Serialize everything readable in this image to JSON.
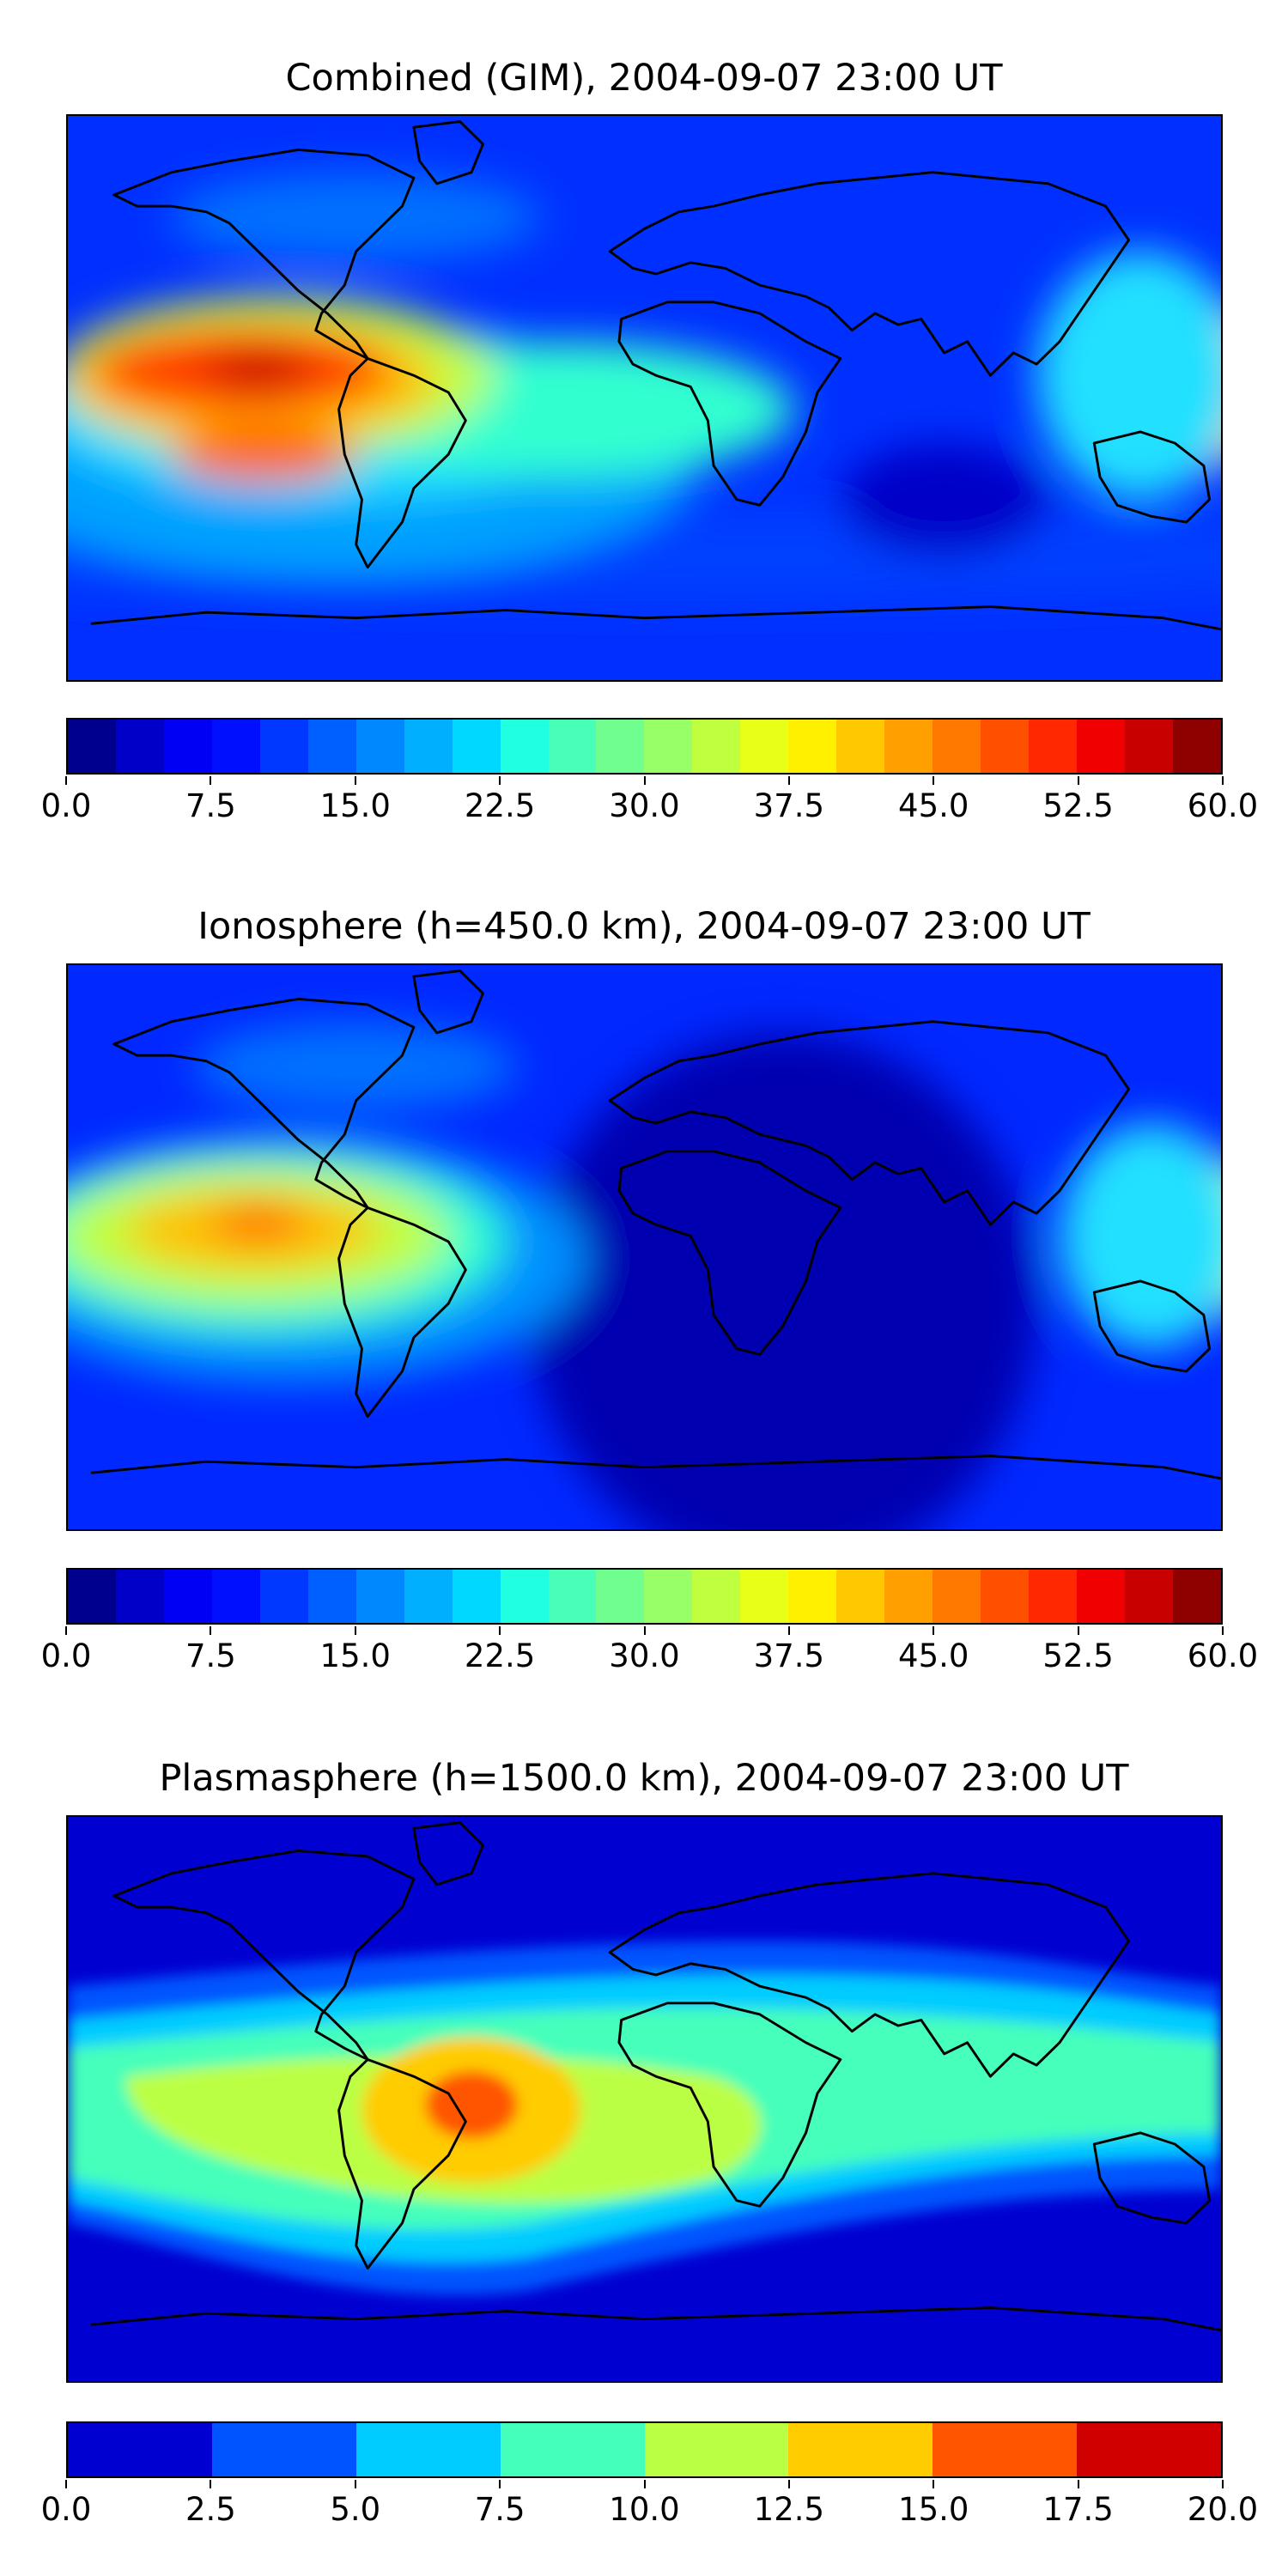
{
  "figure": {
    "panels": [
      {
        "title": "Combined (GIM), 2004-09-07 23:00 UT",
        "variant": "combined",
        "colorbar": {
          "ticks": [
            "0.0",
            "7.5",
            "15.0",
            "22.5",
            "30.0",
            "37.5",
            "45.0",
            "52.5",
            "60.0"
          ],
          "tick_values": [
            0,
            7.5,
            15,
            22.5,
            30,
            37.5,
            45,
            52.5,
            60
          ],
          "min": 0,
          "max": 60,
          "levels": 24
        }
      },
      {
        "title": "Ionosphere  (h=450.0 km), 2004-09-07 23:00 UT",
        "variant": "ionosphere",
        "colorbar": {
          "ticks": [
            "0.0",
            "7.5",
            "15.0",
            "22.5",
            "30.0",
            "37.5",
            "45.0",
            "52.5",
            "60.0"
          ],
          "tick_values": [
            0,
            7.5,
            15,
            22.5,
            30,
            37.5,
            45,
            52.5,
            60
          ],
          "min": 0,
          "max": 60,
          "levels": 24
        }
      },
      {
        "title": "Plasmasphere (h=1500.0 km), 2004-09-07 23:00 UT",
        "variant": "plasmasphere",
        "colorbar": {
          "ticks": [
            "0.0",
            "2.5",
            "5.0",
            "7.5",
            "10.0",
            "12.5",
            "15.0",
            "17.5",
            "20.0"
          ],
          "tick_values": [
            0,
            2.5,
            5,
            7.5,
            10,
            12.5,
            15,
            17.5,
            20
          ],
          "min": 0,
          "max": 20,
          "levels": 8
        }
      }
    ],
    "colors": {
      "jet24": [
        "#00008f",
        "#0000c8",
        "#0000f5",
        "#0010ff",
        "#0038ff",
        "#0060ff",
        "#0088ff",
        "#00b0ff",
        "#00d8ff",
        "#20ffdf",
        "#48ffb7",
        "#70ff8f",
        "#98ff67",
        "#c0ff3f",
        "#e8ff17",
        "#fff000",
        "#ffc800",
        "#ffa000",
        "#ff7800",
        "#ff5000",
        "#ff2800",
        "#f00000",
        "#c80000",
        "#8f0000"
      ],
      "jet8": [
        "#0000d0",
        "#0054ff",
        "#00ccff",
        "#44ffbb",
        "#bbff44",
        "#ffcc00",
        "#ff5400",
        "#d00000"
      ]
    }
  }
}
